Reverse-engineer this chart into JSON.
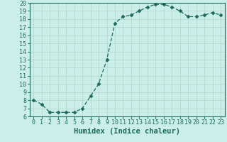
{
  "title": "",
  "xlabel": "Humidex (Indice chaleur)",
  "x": [
    0,
    1,
    2,
    3,
    4,
    5,
    6,
    7,
    8,
    9,
    10,
    11,
    12,
    13,
    14,
    15,
    16,
    17,
    18,
    19,
    20,
    21,
    22,
    23
  ],
  "y": [
    8.0,
    7.5,
    6.5,
    6.5,
    6.5,
    6.5,
    7.0,
    8.5,
    10.0,
    13.0,
    17.5,
    18.3,
    18.5,
    19.0,
    19.5,
    19.8,
    19.8,
    19.5,
    19.0,
    18.3,
    18.3,
    18.5,
    18.8,
    18.5
  ],
  "line_color": "#1a6b5a",
  "marker": "D",
  "marker_size": 2.5,
  "bg_color": "#cceee8",
  "grid_color": "#b0d8cc",
  "xlim": [
    -0.5,
    23.5
  ],
  "ylim": [
    6,
    20
  ],
  "yticks": [
    6,
    7,
    8,
    9,
    10,
    11,
    12,
    13,
    14,
    15,
    16,
    17,
    18,
    19,
    20
  ],
  "xticks": [
    0,
    1,
    2,
    3,
    4,
    5,
    6,
    7,
    8,
    9,
    10,
    11,
    12,
    13,
    14,
    15,
    16,
    17,
    18,
    19,
    20,
    21,
    22,
    23
  ],
  "tick_fontsize": 6,
  "label_fontsize": 7.5
}
